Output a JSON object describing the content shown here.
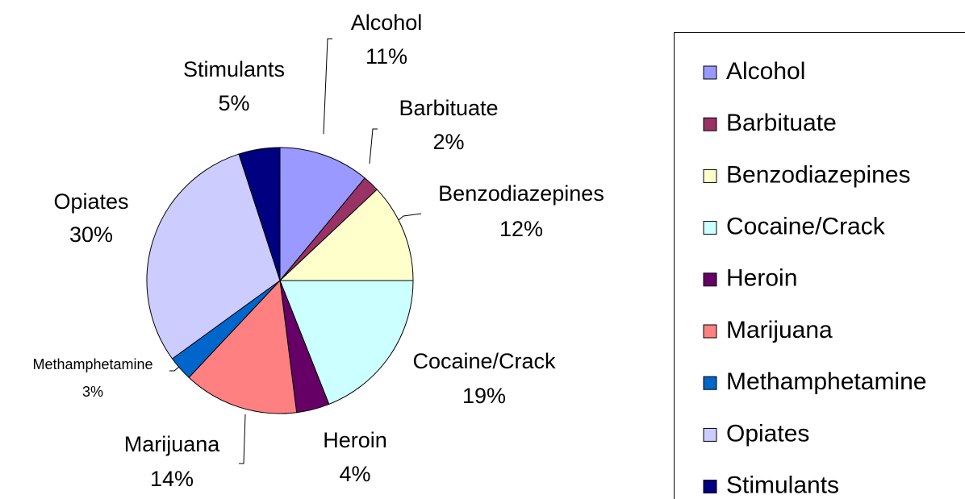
{
  "chart_data": {
    "type": "pie",
    "categories": [
      "Alcohol",
      "Barbituate",
      "Benzodiazepines",
      "Cocaine/Crack",
      "Heroin",
      "Marijuana",
      "Methamphetamine",
      "Opiates",
      "Stimulants"
    ],
    "values": [
      11,
      2,
      12,
      19,
      4,
      14,
      3,
      30,
      5
    ],
    "value_labels": [
      "11%",
      "2%",
      "12%",
      "19%",
      "4%",
      "14%",
      "3%",
      "30%",
      "5%"
    ],
    "colors": [
      "#9999ff",
      "#993366",
      "#ffffcc",
      "#ccffff",
      "#660066",
      "#ff8080",
      "#0066cc",
      "#ccccff",
      "#000080"
    ],
    "legend": "right"
  }
}
